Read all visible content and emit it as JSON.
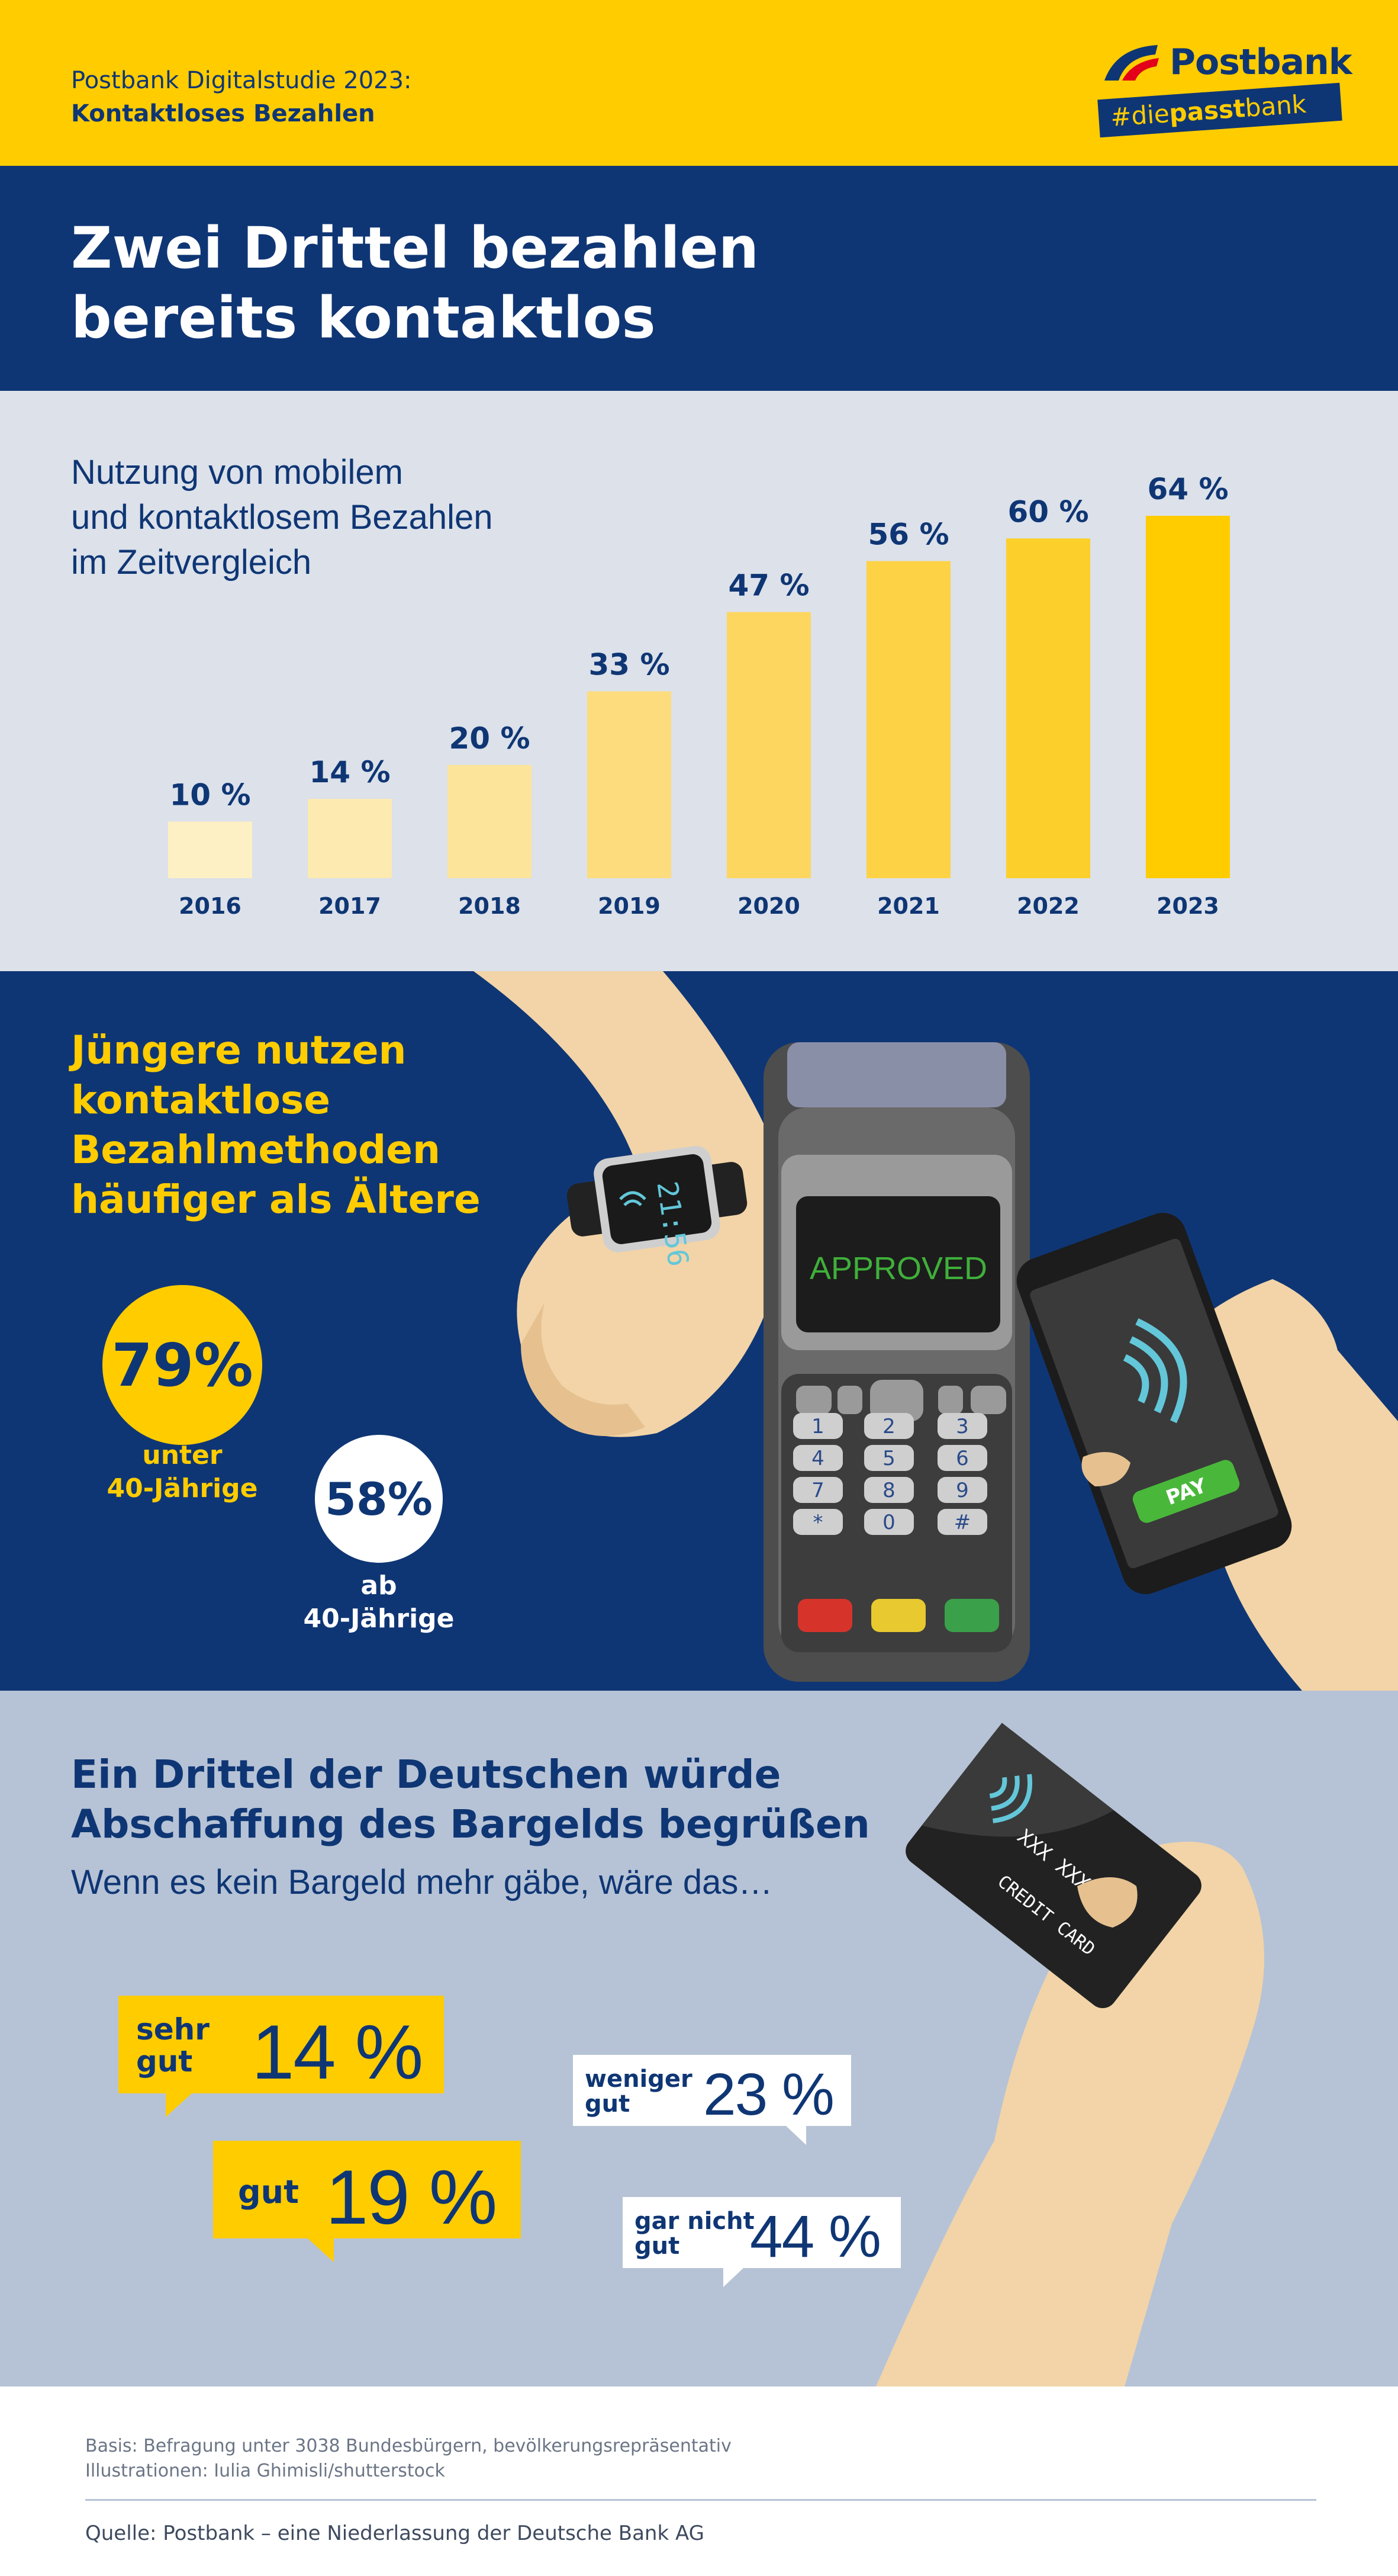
{
  "header": {
    "study_title": "Postbank Digitalstudie 2023:",
    "study_topic": "Kontaktloses Bezahlen",
    "logo_brand": "Postbank",
    "logo_hashtag_prefix": "#die",
    "logo_hashtag_bold": "passt",
    "logo_hashtag_suffix": "bank"
  },
  "title": {
    "line1": "Zwei Drittel bezahlen",
    "line2": "bereits kontaktlos"
  },
  "chart_section": {
    "subtitle_line1": "Nutzung von mobilem",
    "subtitle_line2": "und kontaktlosem Bezahlen",
    "subtitle_line3": "im Zeitvergleich"
  },
  "chart_data": {
    "type": "bar",
    "title": "Nutzung von mobilem und kontaktlosem Bezahlen im Zeitvergleich",
    "categories": [
      "2016",
      "2017",
      "2018",
      "2019",
      "2020",
      "2021",
      "2022",
      "2023"
    ],
    "values": [
      10,
      14,
      20,
      33,
      47,
      56,
      60,
      64
    ],
    "value_labels": [
      "10 %",
      "14 %",
      "20 %",
      "33 %",
      "47 %",
      "56 %",
      "60 %",
      "64 %"
    ],
    "bar_colors": [
      "#fdf0c4",
      "#fdeab0",
      "#fde49b",
      "#fddc7d",
      "#fdd65f",
      "#fdd345",
      "#fdcf2a",
      "#ffcc00"
    ],
    "label_color": "#0f3674",
    "ylim": [
      0,
      64
    ],
    "grid": false,
    "xlabel": "",
    "ylabel": ""
  },
  "age_section": {
    "heading_line1": "Jüngere nutzen",
    "heading_line2": "kontaktlose",
    "heading_line3": "Bezahlmethoden",
    "heading_line4": "häufiger als Ältere",
    "young_value": "79%",
    "young_label_line1": "unter",
    "young_label_line2": "40-Jährige",
    "old_value": "58%",
    "old_label_line1": "ab",
    "old_label_line2": "40-Jährige",
    "terminal_screen": "APPROVED",
    "phone_button": "PAY",
    "watch_time": "21:56",
    "keypad_keys": [
      "1",
      "2",
      "3",
      "4",
      "5",
      "6",
      "7",
      "8",
      "9",
      "*",
      "0",
      "#"
    ]
  },
  "survey_section": {
    "heading_line1": "Ein Drittel der Deutschen würde",
    "heading_line2": "Abschaffung des Bargelds begrüßen",
    "question": "Wenn es kein Bargeld mehr gäbe, wäre das…",
    "card_text": "CREDIT CARD",
    "card_number": "XXX XXX X",
    "answers": [
      {
        "label_line1": "sehr",
        "label_line2": "gut",
        "value": "14 %"
      },
      {
        "label_line1": "gut",
        "label_line2": "",
        "value": "19 %"
      },
      {
        "label_line1": "weniger",
        "label_line2": "gut",
        "value": "23 %"
      },
      {
        "label_line1": "gar nicht",
        "label_line2": "gut",
        "value": "44 %"
      }
    ]
  },
  "footer": {
    "basis": "Basis: Befragung unter 3038 Bundesbürgern, bevölkerungsrepräsentativ",
    "illustrations": "Illustrationen: Iulia Ghimisli/shutterstock",
    "source": "Quelle: Postbank – eine Niederlassung der Deutsche Bank AG"
  },
  "colors": {
    "brand_yellow": "#ffcc00",
    "brand_blue": "#0f3674",
    "chart_bg": "#dce1ea",
    "survey_bg": "#b6c3d6"
  }
}
